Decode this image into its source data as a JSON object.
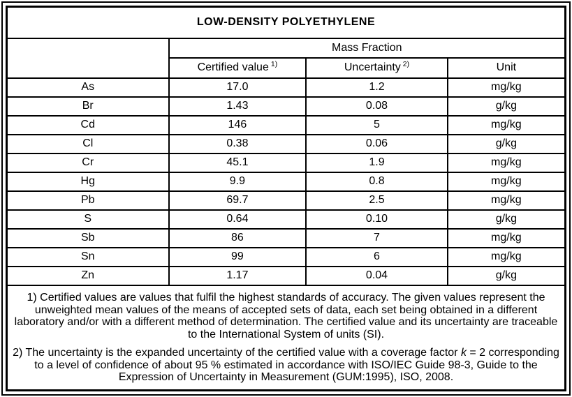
{
  "title": "LOW-DENSITY POLYETHYLENE",
  "table": {
    "group_header": "Mass Fraction",
    "columns": {
      "certified_label": "Certified value",
      "certified_sup": "1)",
      "uncertainty_label": "Uncertainty",
      "uncertainty_sup": "2)",
      "unit_label": "Unit"
    },
    "rows": [
      {
        "element": "As",
        "value": "17.0",
        "uncertainty": "1.2",
        "unit": "mg/kg"
      },
      {
        "element": "Br",
        "value": "1.43",
        "uncertainty": "0.08",
        "unit": "g/kg"
      },
      {
        "element": "Cd",
        "value": "146",
        "uncertainty": "5",
        "unit": "mg/kg"
      },
      {
        "element": "Cl",
        "value": "0.38",
        "uncertainty": "0.06",
        "unit": "g/kg"
      },
      {
        "element": "Cr",
        "value": "45.1",
        "uncertainty": "1.9",
        "unit": "mg/kg"
      },
      {
        "element": "Hg",
        "value": "9.9",
        "uncertainty": "0.8",
        "unit": "mg/kg"
      },
      {
        "element": "Pb",
        "value": "69.7",
        "uncertainty": "2.5",
        "unit": "mg/kg"
      },
      {
        "element": "S",
        "value": "0.64",
        "uncertainty": "0.10",
        "unit": "g/kg"
      },
      {
        "element": "Sb",
        "value": "86",
        "uncertainty": "7",
        "unit": "mg/kg"
      },
      {
        "element": "Sn",
        "value": "99",
        "uncertainty": "6",
        "unit": "mg/kg"
      },
      {
        "element": "Zn",
        "value": "1.17",
        "uncertainty": "0.04",
        "unit": "g/kg"
      }
    ]
  },
  "footnotes": {
    "note1": "1) Certified values are values that fulfil the highest standards of accuracy. The given values represent the unweighted mean values of the means of accepted sets of data, each set being obtained in a different laboratory and/or with a different method of determination. The certified value and its uncertainty are traceable to the International System of units (SI).",
    "note2_before_k": "2) The uncertainty is the expanded uncertainty of the certified value with a coverage factor ",
    "note2_k": "k",
    "note2_after_k": " = 2 corresponding to a level of confidence of about 95 % estimated in accordance with ISO/IEC Guide 98-3, Guide to the Expression of Uncertainty in Measurement (GUM:1995), ISO, 2008."
  },
  "colors": {
    "border": "#000000",
    "background": "#ffffff",
    "text": "#000000"
  }
}
